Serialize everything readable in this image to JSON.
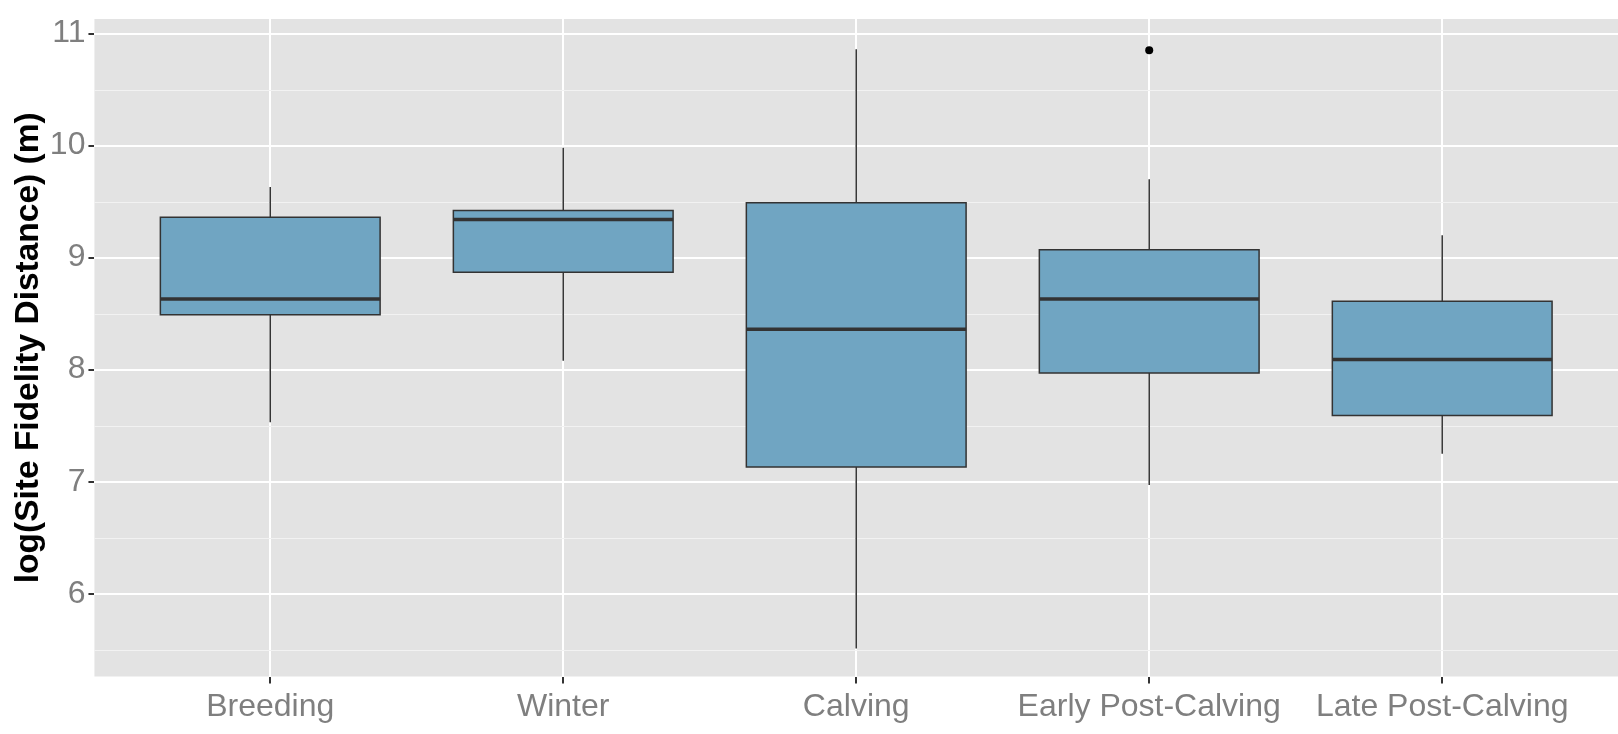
{
  "chart_data": {
    "type": "box",
    "ylabel": "log(Site Fidelity Distance) (m)",
    "categories": [
      "Breeding",
      "Winter",
      "Calving",
      "Early Post-Calving",
      "Late Post-Calving"
    ],
    "boxes": [
      {
        "low": 7.53,
        "q1": 8.49,
        "median": 8.63,
        "q3": 9.36,
        "high": 9.63
      },
      {
        "low": 8.08,
        "q1": 8.87,
        "median": 9.34,
        "q3": 9.42,
        "high": 9.98
      },
      {
        "low": 5.51,
        "q1": 7.13,
        "median": 8.36,
        "q3": 9.49,
        "high": 10.86
      },
      {
        "low": 6.97,
        "q1": 7.97,
        "median": 8.63,
        "q3": 9.07,
        "high": 9.7,
        "outliers": [
          10.85
        ]
      },
      {
        "low": 7.25,
        "q1": 7.59,
        "median": 8.09,
        "q3": 8.61,
        "high": 9.2
      }
    ],
    "color": "#70a5c2",
    "ylim": [
      5.26,
      11.13
    ],
    "yticks": [
      6,
      7,
      8,
      9,
      10,
      11
    ],
    "grid": true
  }
}
